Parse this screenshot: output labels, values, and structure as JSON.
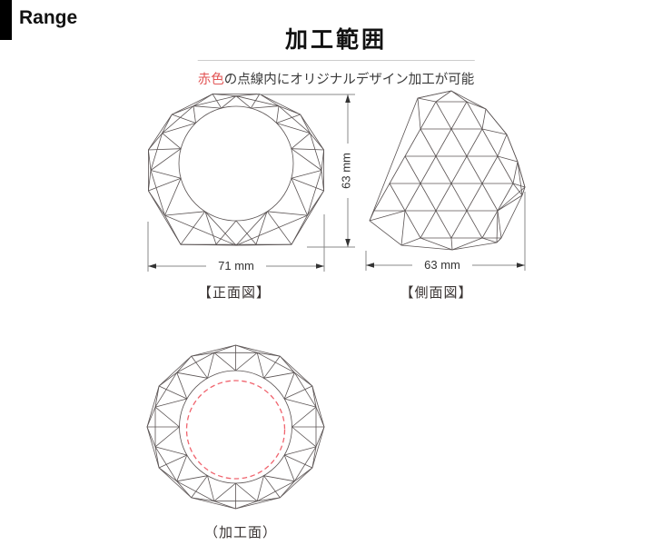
{
  "header": {
    "tab_label": "Range"
  },
  "section": {
    "title": "加工範囲",
    "subtitle": {
      "highlight": "赤色",
      "rest": "の点線内にオリジナルデザイン加工が可能"
    }
  },
  "figures": {
    "front": {
      "caption": "【正面図】",
      "width_label": "71 mm",
      "height_label": "63 mm"
    },
    "side": {
      "caption": "【側面図】",
      "width_label": "63 mm"
    },
    "machining": {
      "caption": "（加工面）"
    }
  },
  "colors": {
    "accent_red": "#e25555",
    "dashed_red": "#f0646e",
    "line": "#5b5454",
    "dimension_line": "#888888",
    "arrow": "#333333"
  }
}
